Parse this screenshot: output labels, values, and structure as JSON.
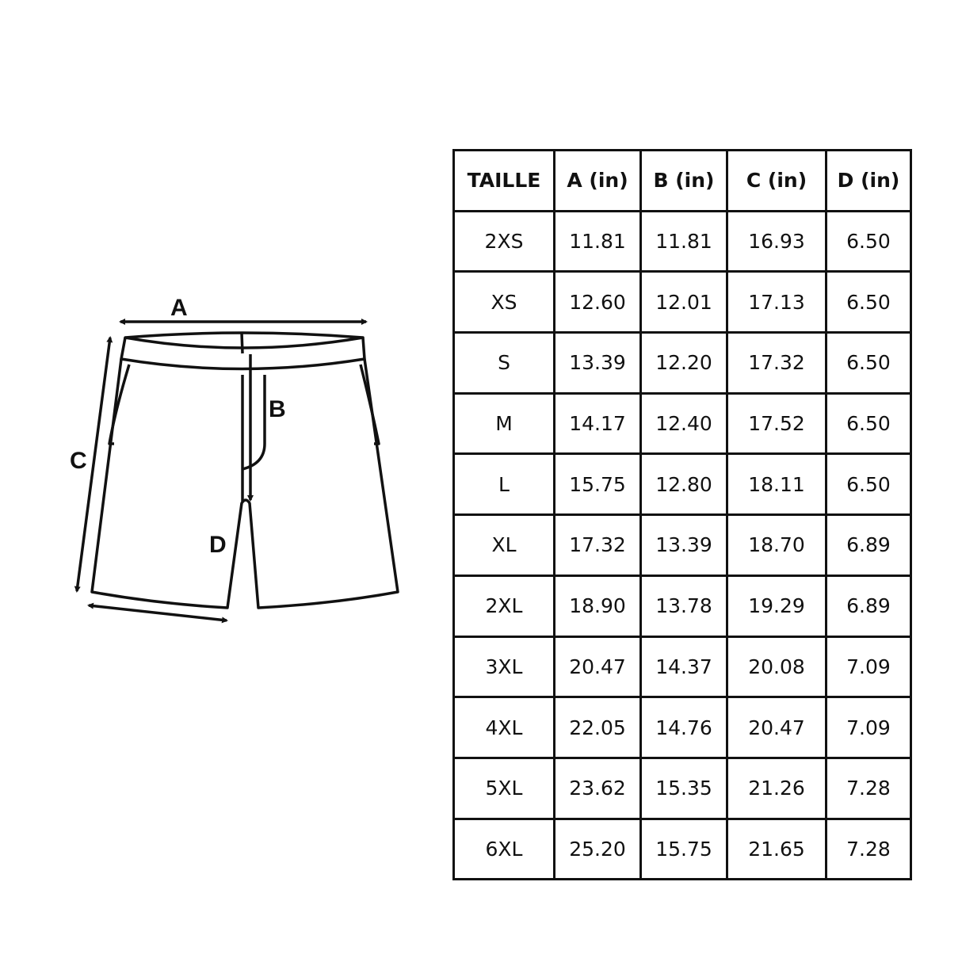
{
  "diagram": {
    "labels": {
      "a": "A",
      "b": "B",
      "c": "C",
      "d": "D"
    },
    "stroke_color": "#111111"
  },
  "table": {
    "headers": [
      "TAILLE",
      "A (in)",
      "B (in)",
      "C (in)",
      "D (in)"
    ],
    "rows": [
      [
        "2XS",
        "11.81",
        "11.81",
        "16.93",
        "6.50"
      ],
      [
        "XS",
        "12.60",
        "12.01",
        "17.13",
        "6.50"
      ],
      [
        "S",
        "13.39",
        "12.20",
        "17.32",
        "6.50"
      ],
      [
        "M",
        "14.17",
        "12.40",
        "17.52",
        "6.50"
      ],
      [
        "L",
        "15.75",
        "12.80",
        "18.11",
        "6.50"
      ],
      [
        "XL",
        "17.32",
        "13.39",
        "18.70",
        "6.89"
      ],
      [
        "2XL",
        "18.90",
        "13.78",
        "19.29",
        "6.89"
      ],
      [
        "3XL",
        "20.47",
        "14.37",
        "20.08",
        "7.09"
      ],
      [
        "4XL",
        "22.05",
        "14.76",
        "20.47",
        "7.09"
      ],
      [
        "5XL",
        "23.62",
        "15.35",
        "21.26",
        "7.28"
      ],
      [
        "6XL",
        "25.20",
        "15.75",
        "21.65",
        "7.28"
      ]
    ]
  }
}
